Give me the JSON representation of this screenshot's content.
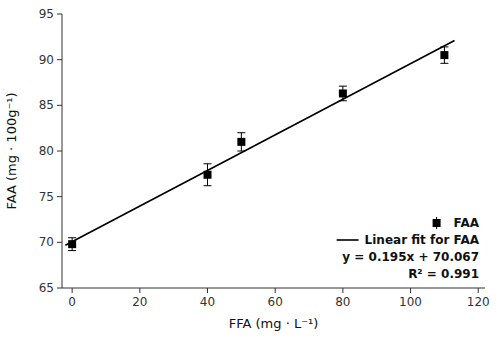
{
  "chart_data": {
    "type": "scatter",
    "xlabel": "FFA (mg · L⁻¹)",
    "ylabel": "FAA (mg · 100g⁻¹)",
    "xlim": [
      -3,
      122
    ],
    "ylim": [
      65,
      95
    ],
    "xticks": [
      0,
      20,
      40,
      60,
      80,
      100,
      120
    ],
    "yticks": [
      65,
      70,
      75,
      80,
      85,
      90,
      95
    ],
    "grid": false,
    "legend": "lower right",
    "series": [
      {
        "name": "FAA",
        "type": "scatter",
        "marker": "square",
        "color": "black",
        "x": [
          0,
          40,
          50,
          80,
          110
        ],
        "values": [
          69.8,
          77.4,
          81.0,
          86.3,
          90.5
        ],
        "errors": [
          0.7,
          1.2,
          1.0,
          0.8,
          0.9
        ]
      },
      {
        "name": "Linear fit for FAA",
        "type": "line",
        "line_style": "solid",
        "color": "black",
        "x": [
          -2,
          113
        ],
        "values": [
          69.677,
          92.102
        ]
      }
    ],
    "annotations": [
      "y = 0.195x + 70.067",
      "R² = 0.991"
    ]
  }
}
